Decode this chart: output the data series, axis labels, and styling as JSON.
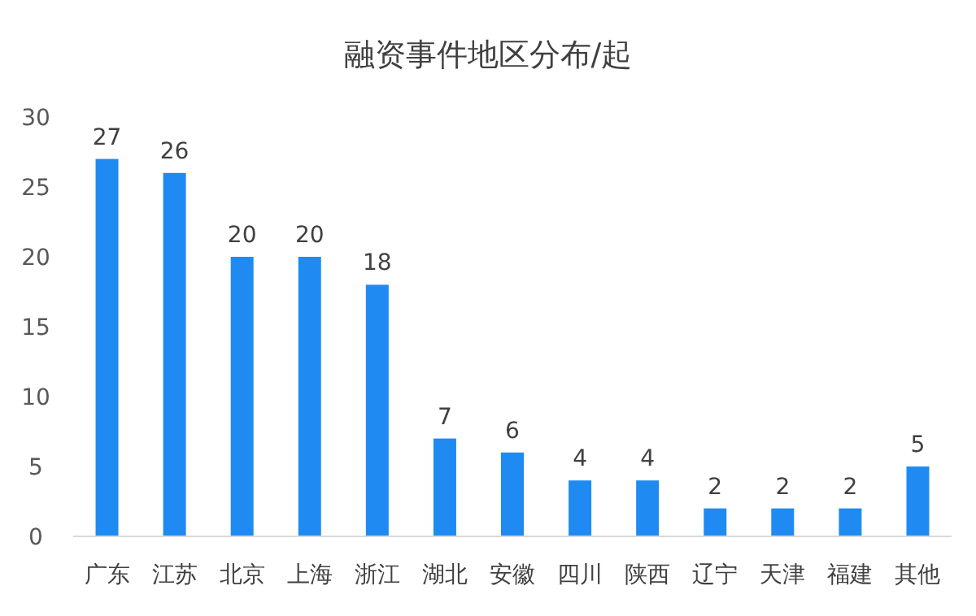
{
  "chart_data": {
    "type": "bar",
    "title": "融资事件地区分布/起",
    "categories": [
      "广东",
      "江苏",
      "北京",
      "上海",
      "浙江",
      "湖北",
      "安徽",
      "四川",
      "陕西",
      "辽宁",
      "天津",
      "福建",
      "其他"
    ],
    "values": [
      27,
      26,
      20,
      20,
      18,
      7,
      6,
      4,
      4,
      2,
      2,
      2,
      5
    ],
    "color": "#1f8bf2",
    "ylim": [
      0,
      30
    ],
    "yticks": [
      0,
      5,
      10,
      15,
      20,
      25,
      30
    ],
    "grid": false,
    "data_labels": true
  }
}
